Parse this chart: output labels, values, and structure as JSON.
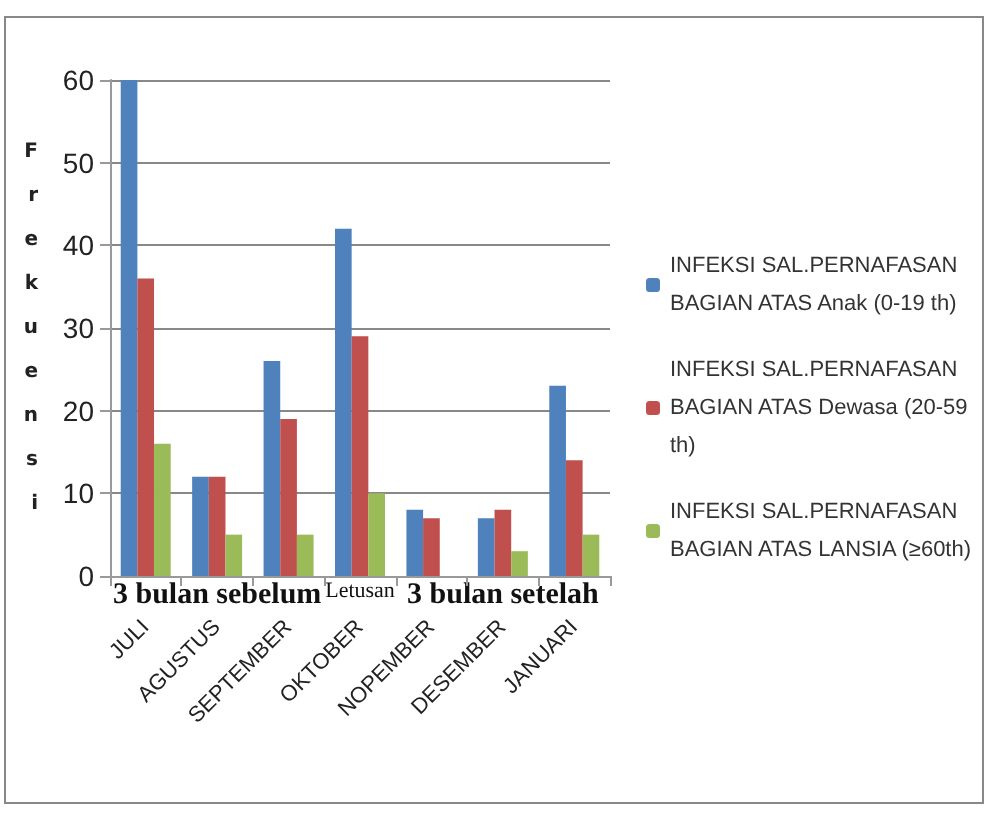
{
  "chart_data": {
    "type": "bar",
    "ylabel": "Frekuensi",
    "categories": [
      "JULI",
      "AGUSTUS",
      "SEPTEMBER",
      "OKTOBER",
      "NOPEMBER",
      "DESEMBER",
      "JANUARI"
    ],
    "series": [
      {
        "name": "INFEKSI SAL.PERNAFASAN BAGIAN ATAS Anak (0-19 th)",
        "color": "#4f81bd",
        "values": [
          60,
          12,
          26,
          42,
          8,
          7,
          23
        ]
      },
      {
        "name": "INFEKSI SAL.PERNAFASAN BAGIAN ATAS Dewasa (20-59 th)",
        "color": "#c0504d",
        "values": [
          36,
          12,
          19,
          29,
          7,
          8,
          14
        ]
      },
      {
        "name": "INFEKSI SAL.PERNAFASAN BAGIAN ATAS LANSIA (≥60th)",
        "color": "#9bbb59",
        "values": [
          16,
          5,
          5,
          10,
          0,
          3,
          5
        ]
      }
    ],
    "annotations": [
      "3 bulan sebelum",
      "Letusan",
      "3 bulan setelah"
    ],
    "ylim": [
      0,
      60
    ],
    "yticks": [
      0,
      10,
      20,
      30,
      40,
      50,
      60
    ],
    "grid": "y",
    "legend": "right"
  }
}
